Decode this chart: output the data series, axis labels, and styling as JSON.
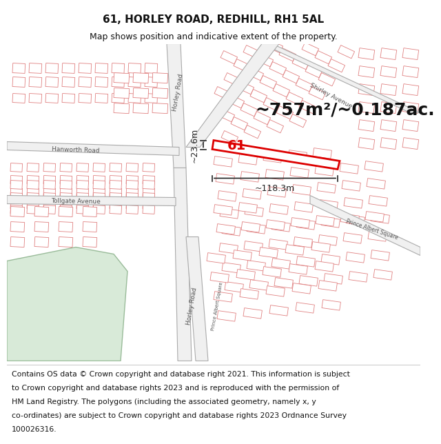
{
  "title": "61, HORLEY ROAD, REDHILL, RH1 5AL",
  "subtitle": "Map shows position and indicative extent of the property.",
  "footer_lines": [
    "Contains OS data © Crown copyright and database right 2021. This information is subject",
    "to Crown copyright and database rights 2023 and is reproduced with the permission of",
    "HM Land Registry. The polygons (including the associated geometry, namely x, y",
    "co-ordinates) are subject to Crown copyright and database rights 2023 Ordnance Survey",
    "100026316."
  ],
  "area_label": "~757m²/~0.187ac.",
  "width_label": "~118.3m",
  "height_label": "~23.6m",
  "plot_label": "61",
  "map_bg": "#ffffff",
  "road_fill": "#f0f0f0",
  "road_edge": "#aaaaaa",
  "building_fill": "#ffffff",
  "building_edge_color": "#e08080",
  "building_lw": 0.6,
  "plot_fill": "#ffffff",
  "plot_edge": "#dd0000",
  "plot_lw": 2.0,
  "green_fill": "#d8ead8",
  "green_edge": "#99bb99",
  "dim_color": "#222222",
  "road_label_color": "#555555",
  "footer_bg": "#ffffff",
  "header_bg": "#ffffff",
  "title_fontsize": 11,
  "subtitle_fontsize": 9,
  "footer_fontsize": 7.8,
  "area_fontsize": 18,
  "dim_fontsize": 9,
  "plot_num_fontsize": 14,
  "road_label_fontsize": 6.5
}
